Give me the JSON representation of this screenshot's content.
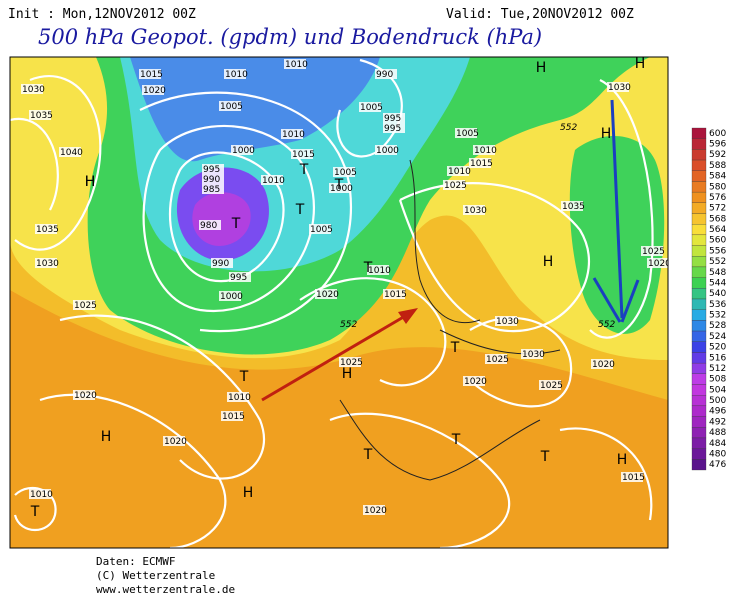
{
  "header": {
    "init": "Init : Mon,12NOV2012 00Z",
    "valid": "Valid: Tue,20NOV2012 00Z",
    "title": "500 hPa Geopot. (gpdm) und Bodendruck (hPa)"
  },
  "colorbar": {
    "labels": [
      "600",
      "596",
      "592",
      "588",
      "584",
      "580",
      "576",
      "572",
      "568",
      "564",
      "560",
      "556",
      "552",
      "548",
      "544",
      "540",
      "536",
      "532",
      "528",
      "524",
      "520",
      "516",
      "512",
      "508",
      "504",
      "500",
      "496",
      "492",
      "488",
      "484",
      "480",
      "476"
    ]
  },
  "map": {
    "isobar_labels": [
      "1015",
      "1020",
      "1010",
      "1010",
      "990",
      "1030",
      "1035",
      "1040",
      "1005",
      "1005",
      "1000",
      "1010",
      "995",
      "995",
      "1005",
      "1000",
      "1015",
      "1010",
      "1010",
      "1015",
      "995",
      "990",
      "985",
      "1005",
      "1000",
      "1010",
      "1025",
      "1030",
      "1035",
      "980",
      "1005",
      "1035",
      "1030",
      "990",
      "995",
      "1010",
      "1000",
      "1020",
      "1015",
      "1025",
      "1030",
      "1025",
      "1020",
      "1030",
      "1025",
      "1025",
      "1030",
      "1025",
      "1020",
      "1020",
      "1010",
      "1015",
      "1020",
      "1020",
      "1015",
      "1010",
      "1020"
    ],
    "height_labels": [
      "552",
      "552",
      "552"
    ],
    "centers": [
      "H",
      "H",
      "H",
      "H",
      "H",
      "H",
      "H",
      "H",
      "H",
      "H",
      "T",
      "T",
      "T",
      "T",
      "T",
      "T",
      "T",
      "T",
      "T",
      "T",
      "T"
    ]
  },
  "credits": [
    "Daten: ECMWF",
    "(C) Wetterzentrale",
    "www.wetterzentrale.de"
  ]
}
